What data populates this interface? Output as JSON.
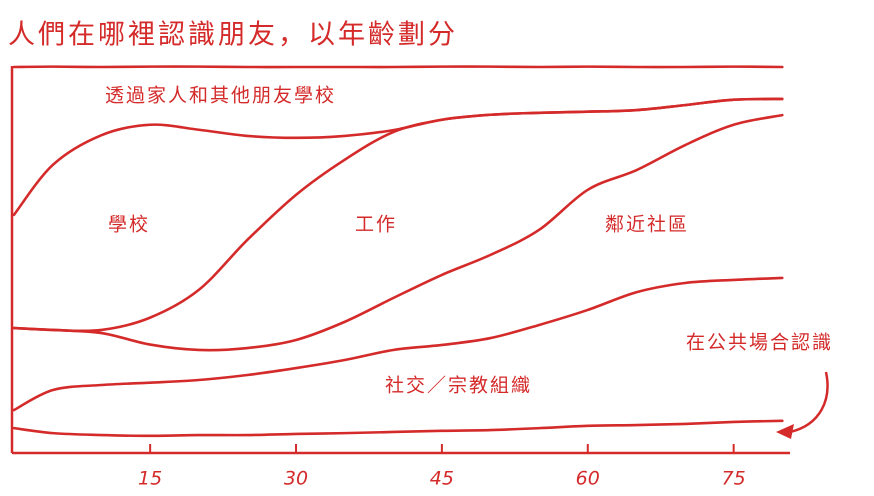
{
  "chart_data": {
    "type": "stacked-area",
    "title": "人們在哪裡認識朋友，以年齡劃分",
    "x": [
      1,
      5,
      10,
      15,
      20,
      25,
      30,
      35,
      40,
      45,
      50,
      55,
      60,
      65,
      70,
      75,
      80
    ],
    "xlim": [
      1,
      81
    ],
    "xticks": [
      15,
      30,
      45,
      60,
      75
    ],
    "ylim": [
      0,
      100
    ],
    "series": [
      {
        "name": "在公共場合認識",
        "color": "#d42a2a",
        "values": [
          6.2,
          4.9,
          4.4,
          4.2,
          4.4,
          4.4,
          4.7,
          4.9,
          5.2,
          5.5,
          5.7,
          6.2,
          6.8,
          7.0,
          7.3,
          7.8,
          8.1
        ]
      },
      {
        "name": "社交／宗教組織",
        "color": "#d42a2a",
        "values": [
          4.7,
          11.2,
          13.0,
          13.8,
          14.3,
          15.6,
          17.1,
          19.0,
          21.3,
          22.3,
          23.9,
          26.8,
          30.1,
          34.5,
          36.6,
          36.9,
          37.1
        ]
      },
      {
        "name": "鄰近社區",
        "color": "#d42a2a",
        "values": [
          21.3,
          15.6,
          13.5,
          9.9,
          7.8,
          7.0,
          7.3,
          9.9,
          13.5,
          18.2,
          21.6,
          24.7,
          31.2,
          31.7,
          35.8,
          40.3,
          42.3
        ]
      },
      {
        "name": "工作",
        "color": "#d42a2a",
        "values": [
          0,
          0,
          0.8,
          7.0,
          15.6,
          28.1,
          37.7,
          42.1,
          43.1,
          40.3,
          36.4,
          30.4,
          20.3,
          15.6,
          10.4,
          6.5,
          4.2
        ]
      },
      {
        "name": "學校",
        "color": "#d42a2a",
        "values": [
          29.4,
          42.9,
          50.6,
          50.1,
          41.6,
          27.0,
          14.8,
          6.2,
          0.5,
          0,
          0,
          0,
          0,
          0,
          0,
          0,
          0
        ]
      },
      {
        "name": "透過家人和其他朋友學校",
        "color": "#d42a2a",
        "values": [
          38.4,
          25.5,
          17.7,
          15.1,
          16.4,
          17.9,
          18.4,
          17.9,
          16.4,
          13.8,
          12.5,
          11.9,
          11.7,
          11.2,
          9.9,
          8.6,
          8.3
        ]
      }
    ]
  }
}
